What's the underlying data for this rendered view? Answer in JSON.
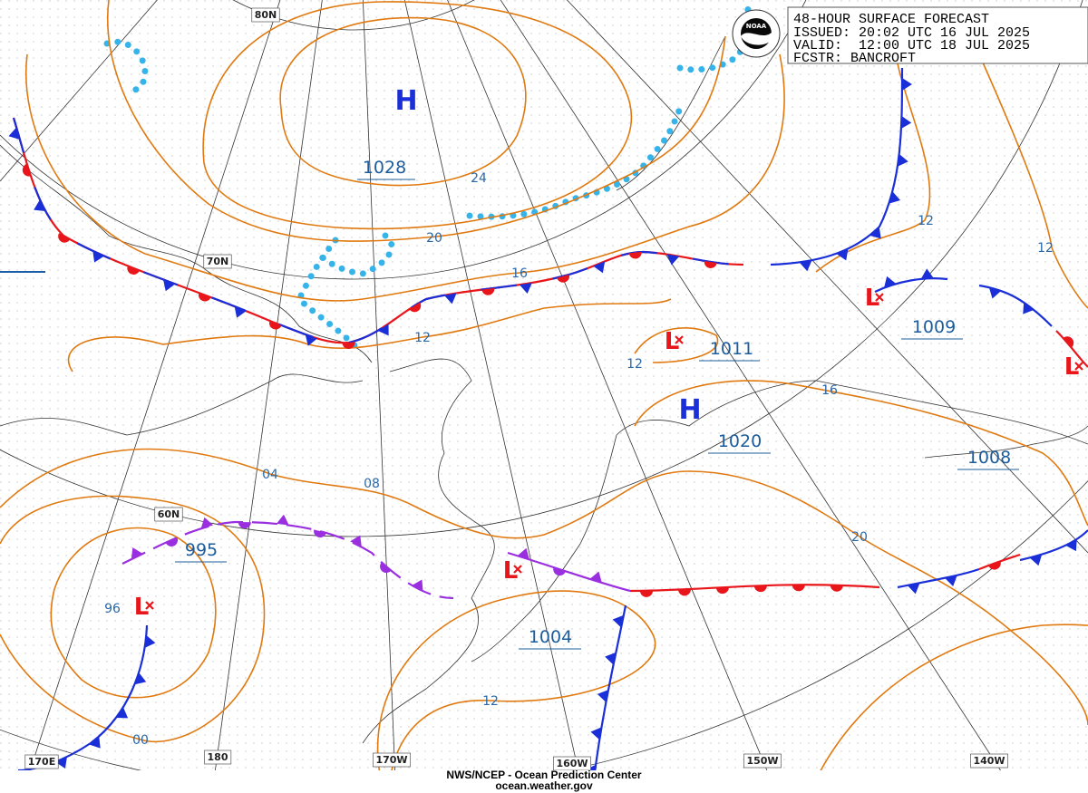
{
  "header": {
    "lines": [
      "48-HOUR SURFACE FORECAST",
      "ISSUED: 20:02 UTC 16 JUL 2025",
      "VALID:  12:00 UTC 18 JUL 2025",
      "FCSTR: BANCROFT"
    ]
  },
  "logo": "NOAA",
  "centers": [
    {
      "symbol": "H",
      "pressure": "1028"
    },
    {
      "symbol": "H",
      "pressure": "1020"
    },
    {
      "symbol": "L",
      "pressure": "1011"
    },
    {
      "symbol": "L",
      "pressure": "1009"
    },
    {
      "pressure": "1008"
    },
    {
      "symbol": "L",
      "pressure": "995"
    },
    {
      "symbol": "L",
      "pressure": "1004"
    },
    {
      "symbol": "L"
    }
  ],
  "isobar_labels": [
    "24",
    "20",
    "16",
    "12",
    "12",
    "16",
    "12",
    "12",
    "04",
    "08",
    "96",
    "00",
    "12",
    "20"
  ],
  "graticule_labels": [
    "80N",
    "70N",
    "60N",
    "170E",
    "180",
    "170W",
    "160W",
    "150W",
    "140W"
  ],
  "footer": {
    "lines": [
      "NWS/NCEP - Ocean Prediction Center",
      "ocean.weather.gov"
    ]
  }
}
